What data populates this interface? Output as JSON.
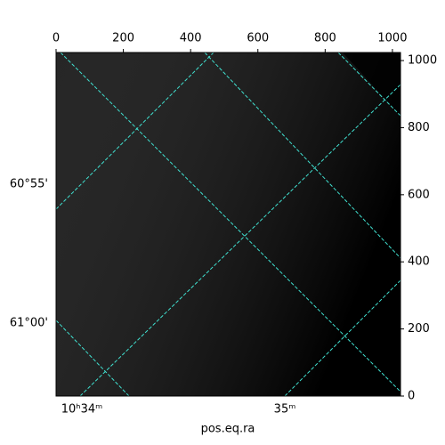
{
  "chart_data": {
    "type": "image",
    "xlabel": "pos.eq.ra",
    "xlim": [
      0,
      1024
    ],
    "xticks": [
      0,
      200,
      400,
      600,
      800,
      1000
    ],
    "ylim": [
      0,
      1024
    ],
    "yticks": [
      0,
      200,
      400,
      600,
      800,
      1000
    ],
    "ra_tick_labels": [
      "10ʰ34ᵐ",
      "35ᵐ"
    ],
    "dec_tick_labels": [
      "60°55'",
      "61°00'"
    ],
    "grid_color": "#40e0d0"
  }
}
